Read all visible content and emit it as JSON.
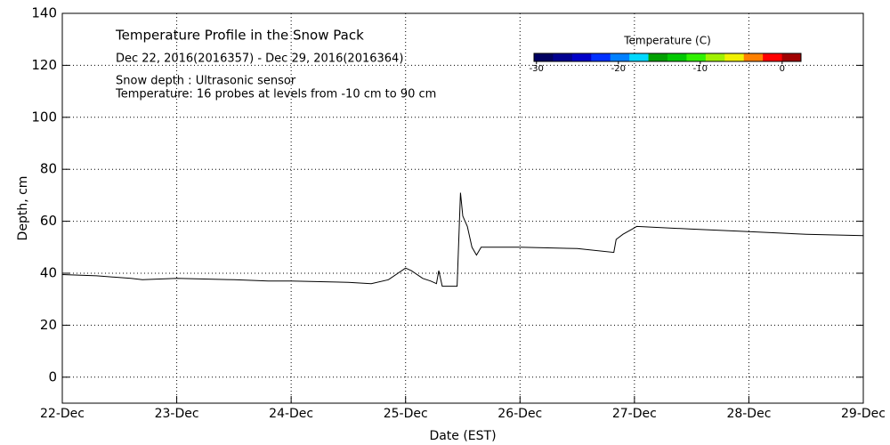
{
  "chart_data": {
    "type": "line",
    "title": "Temperature Profile in the Snow Pack",
    "subtitle": "Dec 22, 2016(2016357) - Dec 29, 2016(2016364)",
    "annotations": [
      "Snow depth : Ultrasonic sensor",
      "Temperature: 16 probes at levels from -10 cm to 90 cm"
    ],
    "x_label": "Date (EST)",
    "y_label": "Depth, cm",
    "x": [
      22.0,
      22.3,
      22.6,
      22.7,
      23.0,
      23.5,
      23.8,
      24.0,
      24.5,
      24.7,
      24.85,
      25.0,
      25.05,
      25.15,
      25.22,
      25.27,
      25.29,
      25.32,
      25.4,
      25.45,
      25.48,
      25.5,
      25.54,
      25.58,
      25.62,
      25.66,
      26.0,
      26.5,
      26.82,
      26.84,
      26.9,
      26.98,
      27.02,
      27.5,
      28.0,
      28.5,
      29.0
    ],
    "series": [
      {
        "name": "Snow depth",
        "color": "#000000",
        "values": [
          39.5,
          39,
          38,
          37.5,
          38,
          37.5,
          37,
          37,
          36.5,
          36,
          37.5,
          42,
          41,
          38,
          37,
          36,
          41,
          35,
          35,
          35,
          71,
          62,
          58,
          50,
          47,
          50,
          50,
          49.5,
          48,
          53,
          55,
          57,
          58,
          57,
          56,
          55,
          54.5
        ]
      }
    ],
    "xlim": [
      22,
      29
    ],
    "xticks": [
      {
        "value": 22,
        "label": "22-Dec"
      },
      {
        "value": 23,
        "label": "23-Dec"
      },
      {
        "value": 24,
        "label": "24-Dec"
      },
      {
        "value": 25,
        "label": "25-Dec"
      },
      {
        "value": 26,
        "label": "26-Dec"
      },
      {
        "value": 27,
        "label": "27-Dec"
      },
      {
        "value": 28,
        "label": "28-Dec"
      },
      {
        "value": 29,
        "label": "29-Dec"
      }
    ],
    "ylim": [
      -10,
      140
    ],
    "yticks": [
      0,
      20,
      40,
      60,
      80,
      100,
      120,
      140
    ],
    "grid": true,
    "colorbar": {
      "label": "Temperature (C)",
      "lim": [
        -30.3,
        2.3
      ],
      "ticks": [
        -30,
        -20,
        -10,
        0
      ],
      "colors": [
        "#000060",
        "#000090",
        "#0000c8",
        "#0030ff",
        "#0080ff",
        "#00d8ff",
        "#00a000",
        "#00c800",
        "#30f000",
        "#a0f000",
        "#f0f000",
        "#ff8000",
        "#ff0000",
        "#a00000"
      ]
    }
  }
}
